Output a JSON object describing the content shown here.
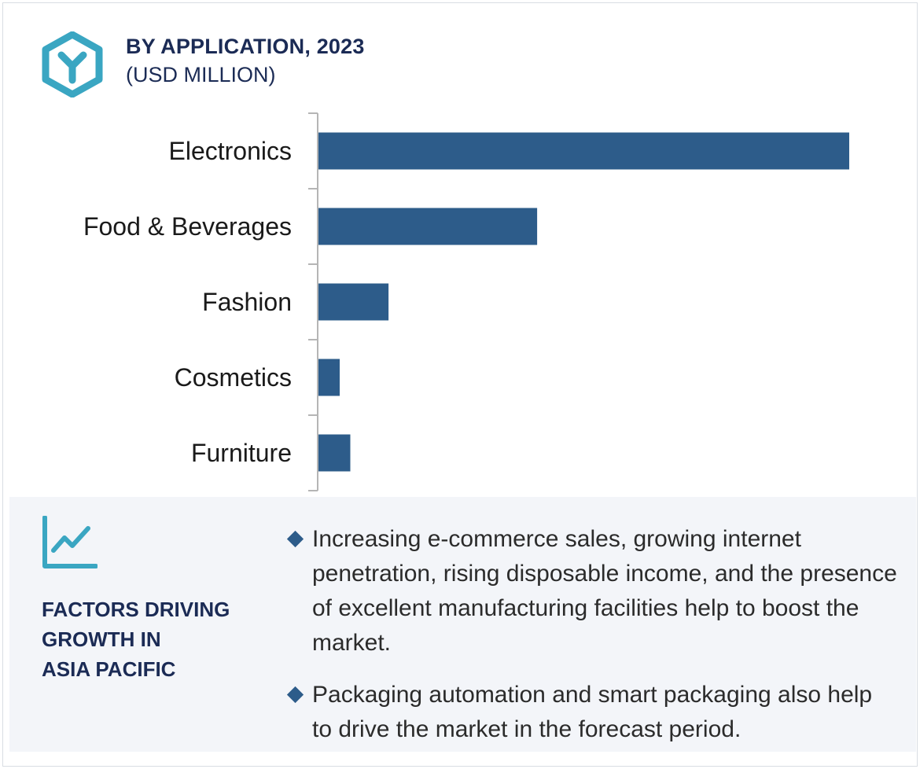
{
  "header": {
    "title": "BY APPLICATION, 2023",
    "subtitle": "(USD MILLION)"
  },
  "icons": {
    "logo": "hexagon-logo-icon",
    "growth": "line-chart-icon"
  },
  "colors": {
    "bar": "#2d5c8a",
    "accent": "#3aa6c2",
    "heading": "#1b2b55",
    "panel_background": "#f3f5f9"
  },
  "chart_data": {
    "type": "bar",
    "orientation": "horizontal",
    "title": "BY APPLICATION, 2023",
    "subtitle": "(USD MILLION)",
    "categories": [
      "Electronics",
      "Food & Beverages",
      "Fashion",
      "Cosmetics",
      "Furniture"
    ],
    "values": [
      100,
      41.2,
      13.2,
      4.0,
      6.0
    ],
    "xlim": [
      0,
      100
    ],
    "grid": false,
    "legend": "none",
    "value_labels_shown": false
  },
  "factors": {
    "title_lines": [
      "FACTORS DRIVING",
      "GROWTH IN",
      "ASIA PACIFIC"
    ],
    "bullets": [
      "Increasing e-commerce sales, growing internet penetration, rising disposable income, and the presence of excellent manufacturing facilities help to boost the market.",
      "Packaging automation and smart packaging also help to drive the market in the forecast period."
    ]
  }
}
